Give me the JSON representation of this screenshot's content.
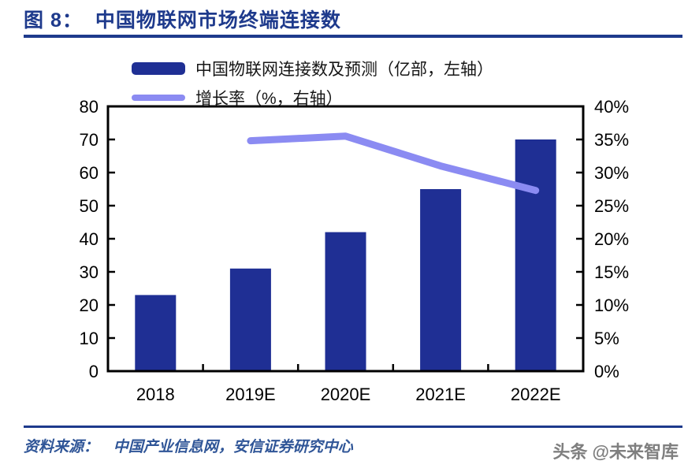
{
  "title": {
    "prefix": "图 8：",
    "text": "中国物联网市场终端连接数"
  },
  "legend": {
    "items": [
      {
        "label": "中国物联网连接数及预测（亿部，左轴）",
        "swatch": "bar-swatch",
        "color": "#1f2f94"
      },
      {
        "label": "增长率（%，右轴）",
        "swatch": "line-swatch",
        "color": "#8b8bf2"
      }
    ]
  },
  "source": {
    "prefix": "资料来源：",
    "text": "中国产业信息网，安信证券研究中心"
  },
  "watermark": {
    "text": "头条 @未来智库"
  },
  "colors": {
    "accent_navy": "#1e3a8c",
    "bar": "#1f2f94",
    "line": "#8b8bf2",
    "axis": "#000000",
    "source_text": "#2f5597",
    "watermark_gray": "#7f7f7f"
  },
  "chart_data": {
    "type": "bar",
    "categories": [
      "2018",
      "2019E",
      "2020E",
      "2021E",
      "2022E"
    ],
    "series": [
      {
        "name": "中国物联网连接数及预测（亿部，左轴）",
        "type": "bar",
        "axis": "left",
        "values": [
          23,
          31,
          42,
          55,
          70
        ]
      },
      {
        "name": "增长率（%，右轴）",
        "type": "line",
        "axis": "right",
        "values": [
          null,
          34.8,
          35.5,
          31,
          27.3
        ]
      }
    ],
    "title": "图 8：中国物联网市场终端连接数",
    "xlabel": "",
    "ylabel_left": "亿部",
    "ylabel_right": "%",
    "left_axis": {
      "min": 0,
      "max": 80,
      "step": 10,
      "ticks": [
        "0",
        "10",
        "20",
        "30",
        "40",
        "50",
        "60",
        "70",
        "80"
      ]
    },
    "right_axis": {
      "min": 0,
      "max": 40,
      "step": 5,
      "format": "percent",
      "ticks": [
        "0%",
        "5%",
        "10%",
        "15%",
        "20%",
        "25%",
        "30%",
        "35%",
        "40%"
      ]
    },
    "grid": false,
    "legend_position": "top-left"
  }
}
